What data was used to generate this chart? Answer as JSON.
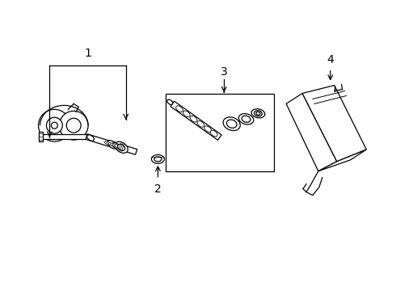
{
  "background_color": "#ffffff",
  "line_color": "#000000",
  "label_fontsize": 10,
  "fig_width": 4.9,
  "fig_height": 3.6,
  "dpi": 100
}
